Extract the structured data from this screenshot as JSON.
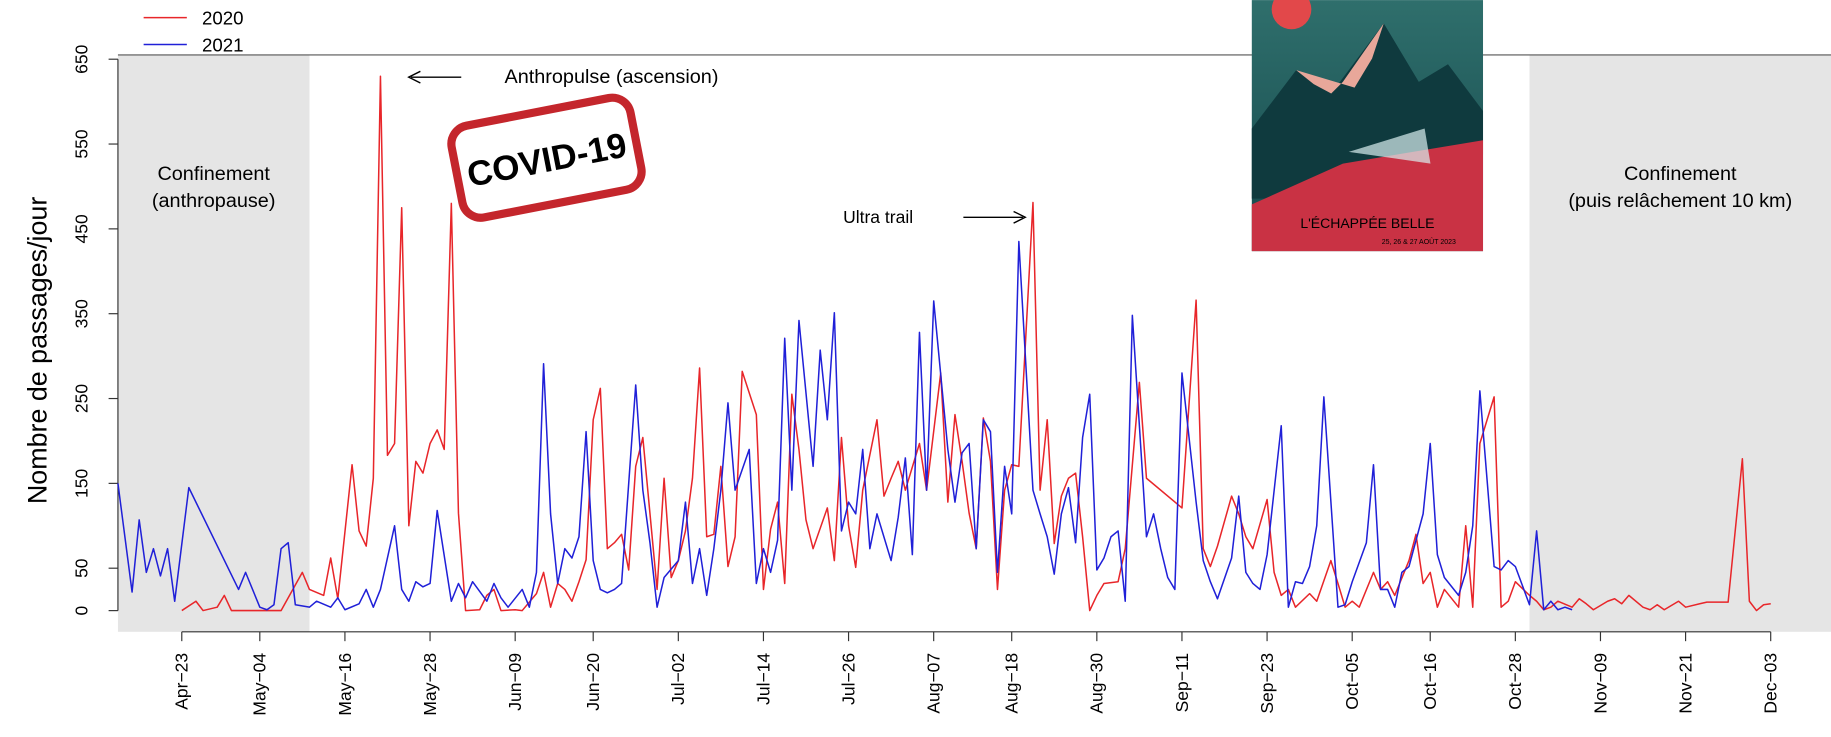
{
  "chart_data": {
    "type": "line",
    "y_label": "Nombre de passages/jour",
    "legend": "top-left",
    "xlim": [
      -9,
      232.5
    ],
    "ylim": [
      -25,
      655
    ],
    "yticks": [
      0,
      50,
      150,
      250,
      350,
      450,
      550,
      650
    ],
    "xticks": [
      {
        "value": 0,
        "label": "Apr−23"
      },
      {
        "value": 11,
        "label": "May−04"
      },
      {
        "value": 23,
        "label": "May−16"
      },
      {
        "value": 35,
        "label": "May−28"
      },
      {
        "value": 47,
        "label": "Jun−09"
      },
      {
        "value": 58,
        "label": "Jun−20"
      },
      {
        "value": 70,
        "label": "Jul−02"
      },
      {
        "value": 82,
        "label": "Jul−14"
      },
      {
        "value": 94,
        "label": "Jul−26"
      },
      {
        "value": 106,
        "label": "Aug−07"
      },
      {
        "value": 117,
        "label": "Aug−18"
      },
      {
        "value": 129,
        "label": "Aug−30"
      },
      {
        "value": 141,
        "label": "Sep−11"
      },
      {
        "value": 153,
        "label": "Sep−23"
      },
      {
        "value": 165,
        "label": "Oct−05"
      },
      {
        "value": 176,
        "label": "Oct−16"
      },
      {
        "value": 188,
        "label": "Oct−28"
      },
      {
        "value": 200,
        "label": "Nov−09"
      },
      {
        "value": 212,
        "label": "Nov−21"
      },
      {
        "value": 224,
        "label": "Dec−03"
      }
    ],
    "shaded_regions": [
      {
        "xlim": [
          -9,
          18
        ],
        "color": "#e5e5e5",
        "lines": [
          "Confinement",
          "(anthropause)"
        ]
      },
      {
        "xlim": [
          190,
          232.5
        ],
        "color": "#e5e5e5",
        "lines": [
          "Confinement",
          "(puis relâchement 10 km)"
        ]
      }
    ],
    "annotations": [
      "Anthropulse (ascension)",
      "Ultra trail"
    ],
    "stamp": "COVID-19",
    "poster": {
      "title": "L'ÉCHAPPÉE BELLE",
      "dates": "25, 26 & 27 AOÛT 2023"
    },
    "series": [
      {
        "name": "2020",
        "color": "#e8262a",
        "x": [
          0,
          2,
          3,
          5,
          6,
          7,
          14,
          17,
          18,
          20,
          21,
          22,
          24,
          25,
          26,
          27,
          28,
          29,
          30,
          31,
          32,
          33,
          34,
          35,
          36,
          37,
          38,
          39,
          40,
          42,
          43,
          44,
          45,
          47,
          48,
          50,
          51,
          52,
          53,
          54,
          55,
          56,
          57,
          58,
          59,
          60,
          61,
          62,
          63,
          64,
          65,
          67,
          68,
          69,
          70,
          71,
          72,
          73,
          74,
          75,
          76,
          77,
          78,
          79,
          81,
          82,
          83,
          84,
          85,
          86,
          87,
          88,
          89,
          91,
          92,
          93,
          94,
          95,
          96,
          98,
          99,
          100,
          101,
          102,
          104,
          105,
          107,
          108,
          109,
          110,
          111,
          112,
          113,
          114,
          115,
          116,
          117,
          118,
          120,
          121,
          122,
          123,
          124,
          125,
          126,
          127,
          128,
          129,
          130,
          132,
          133,
          135,
          136,
          141,
          143,
          144,
          145,
          146,
          148,
          149,
          150,
          151,
          153,
          154,
          155,
          156,
          157,
          159,
          160,
          162,
          163,
          164,
          165,
          166,
          168,
          169,
          170,
          171,
          173,
          174,
          175,
          176,
          177,
          178,
          180,
          181,
          182,
          183,
          185,
          186,
          187,
          188,
          190,
          191,
          192,
          193,
          194,
          196,
          197,
          198,
          199,
          201,
          202,
          203,
          204,
          206,
          207,
          208,
          209,
          211,
          212,
          214,
          215,
          218,
          220,
          221,
          222,
          223,
          224
        ],
        "values": [
          0,
          11,
          0,
          4,
          18,
          0,
          0,
          45,
          25,
          18,
          62,
          14,
          172,
          94,
          76,
          156,
          630,
          183,
          197,
          475,
          100,
          176,
          162,
          197,
          213,
          190,
          480,
          115,
          0,
          1,
          18,
          25,
          0,
          1,
          0,
          20,
          45,
          4,
          32,
          25,
          11,
          34,
          60,
          225,
          262,
          73,
          80,
          90,
          48,
          170,
          204,
          25,
          156,
          39,
          59,
          94,
          156,
          286,
          87,
          90,
          170,
          52,
          87,
          282,
          231,
          25,
          96,
          128,
          32,
          255,
          190,
          107,
          73,
          121,
          59,
          204,
          100,
          51,
          142,
          225,
          135,
          156,
          176,
          142,
          197,
          142,
          280,
          128,
          231,
          176,
          115,
          73,
          227,
          176,
          25,
          142,
          172,
          170,
          481,
          142,
          225,
          79,
          135,
          156,
          162,
          87,
          0,
          18,
          32,
          34,
          73,
          269,
          156,
          121,
          366,
          73,
          52,
          76,
          135,
          114,
          87,
          73,
          131,
          45,
          18,
          25,
          4,
          20,
          11,
          59,
          32,
          4,
          11,
          4,
          45,
          25,
          34,
          18,
          59,
          90,
          32,
          45,
          4,
          25,
          4,
          100,
          4,
          197,
          252,
          4,
          11,
          34,
          18,
          11,
          1,
          4,
          11,
          4,
          14,
          8,
          1,
          11,
          14,
          8,
          18,
          4,
          1,
          7,
          1,
          11,
          4,
          8,
          10,
          10,
          179,
          11,
          0,
          7,
          8
        ]
      },
      {
        "name": "2021",
        "color": "#2020d8",
        "x": [
          -9,
          -7,
          -6,
          -5,
          -4,
          -3,
          -2,
          -1,
          1,
          8,
          9,
          11,
          12,
          13,
          14,
          15,
          16,
          18,
          19,
          21,
          22,
          23,
          25,
          26,
          27,
          28,
          30,
          31,
          32,
          33,
          34,
          35,
          36,
          38,
          39,
          40,
          41,
          43,
          44,
          45,
          46,
          48,
          49,
          50,
          51,
          52,
          53,
          54,
          55,
          56,
          57,
          58,
          59,
          60,
          61,
          62,
          64,
          65,
          66,
          67,
          68,
          70,
          71,
          72,
          73,
          74,
          75,
          76,
          77,
          78,
          80,
          81,
          82,
          83,
          84,
          85,
          86,
          87,
          89,
          90,
          91,
          92,
          93,
          94,
          95,
          96,
          97,
          98,
          100,
          101,
          102,
          103,
          104,
          105,
          106,
          108,
          109,
          110,
          111,
          112,
          113,
          114,
          115,
          116,
          117,
          118,
          120,
          121,
          122,
          123,
          124,
          125,
          126,
          127,
          128,
          129,
          130,
          131,
          132,
          133,
          134,
          136,
          137,
          138,
          139,
          140,
          141,
          143,
          144,
          145,
          146,
          148,
          149,
          150,
          151,
          152,
          153,
          155,
          156,
          157,
          158,
          159,
          160,
          161,
          163,
          164,
          165,
          167,
          168,
          169,
          170,
          171,
          172,
          173,
          175,
          176,
          177,
          178,
          180,
          181,
          182,
          183,
          185,
          186,
          187,
          188,
          190,
          191,
          192,
          193,
          194,
          195,
          196
        ],
        "values": [
          150,
          22,
          107,
          45,
          73,
          41,
          73,
          11,
          145,
          25,
          45,
          4,
          1,
          7,
          73,
          80,
          7,
          4,
          11,
          4,
          15,
          1,
          8,
          25,
          4,
          25,
          100,
          25,
          11,
          34,
          28,
          32,
          118,
          11,
          32,
          15,
          34,
          11,
          32,
          15,
          4,
          25,
          4,
          45,
          291,
          114,
          32,
          73,
          62,
          87,
          211,
          59,
          25,
          21,
          25,
          32,
          266,
          142,
          80,
          4,
          39,
          59,
          128,
          32,
          73,
          18,
          73,
          142,
          245,
          142,
          190,
          32,
          73,
          45,
          83,
          321,
          142,
          342,
          170,
          307,
          225,
          351,
          94,
          128,
          114,
          190,
          73,
          114,
          59,
          110,
          180,
          66,
          328,
          142,
          365,
          190,
          128,
          186,
          197,
          73,
          225,
          211,
          45,
          170,
          114,
          435,
          142,
          114,
          87,
          43,
          114,
          145,
          80,
          204,
          255,
          48,
          62,
          87,
          94,
          11,
          348,
          87,
          114,
          73,
          39,
          25,
          280,
          128,
          59,
          34,
          14,
          62,
          135,
          45,
          32,
          25,
          66,
          218,
          4,
          34,
          32,
          52,
          100,
          252,
          4,
          7,
          34,
          80,
          172,
          25,
          25,
          4,
          45,
          52,
          114,
          197,
          66,
          39,
          18,
          45,
          100,
          259,
          52,
          48,
          59,
          52,
          7,
          94,
          1,
          11,
          1,
          4,
          1
        ]
      }
    ]
  }
}
